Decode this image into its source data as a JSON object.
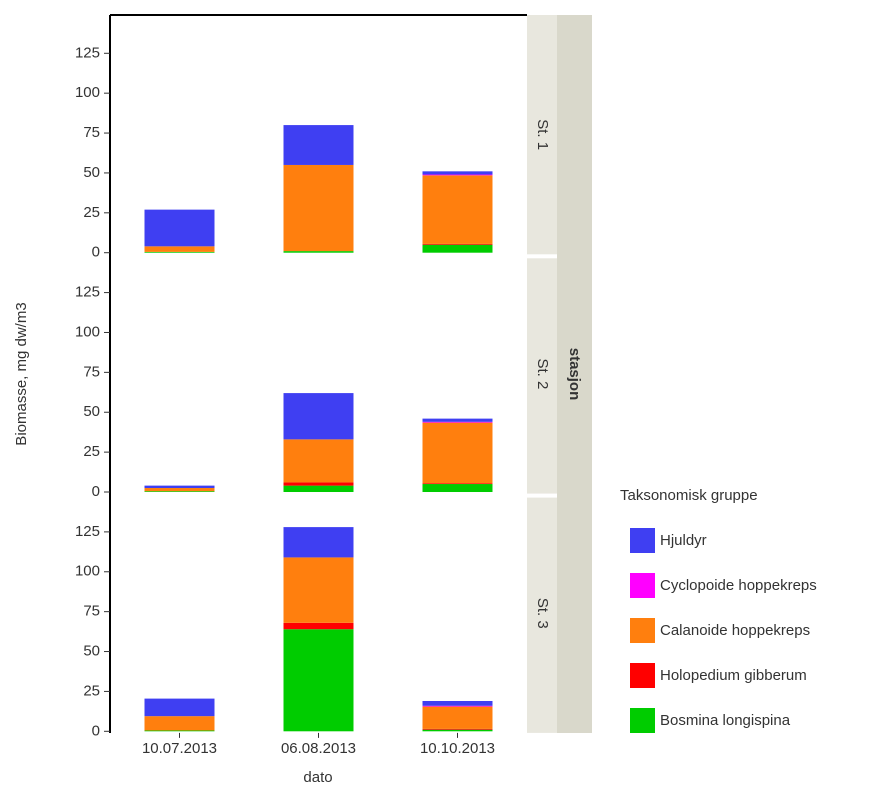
{
  "chart_data": [
    {
      "type": "bar",
      "stacked": true,
      "title": "St. 1",
      "categories": [
        "10.07.2013",
        "06.08.2013",
        "10.10.2013"
      ],
      "series": [
        {
          "values": [
            23,
            25,
            2
          ]
        },
        {
          "values": [
            0,
            0,
            0.5
          ]
        },
        {
          "values": [
            3.5,
            54,
            43
          ]
        },
        {
          "values": [
            0,
            0,
            0.5
          ]
        },
        {
          "values": [
            0.5,
            1,
            5
          ]
        }
      ],
      "ylim": [
        -1,
        149
      ],
      "yticks": [
        0,
        25,
        50,
        75,
        100,
        125
      ]
    },
    {
      "type": "bar",
      "stacked": true,
      "title": "St. 2",
      "categories": [
        "10.07.2013",
        "06.08.2013",
        "10.10.2013"
      ],
      "series": [
        {
          "values": [
            1.5,
            29,
            2
          ]
        },
        {
          "values": [
            0,
            0,
            0.5
          ]
        },
        {
          "values": [
            2,
            27,
            38
          ]
        },
        {
          "values": [
            0,
            2,
            0.5
          ]
        },
        {
          "values": [
            0.5,
            4,
            5
          ]
        }
      ],
      "ylim": [
        -1,
        149
      ],
      "yticks": [
        0,
        25,
        50,
        75,
        100,
        125
      ]
    },
    {
      "type": "bar",
      "stacked": true,
      "title": "St. 3",
      "categories": [
        "10.07.2013",
        "06.08.2013",
        "10.10.2013"
      ],
      "series": [
        {
          "values": [
            11,
            19,
            3
          ]
        },
        {
          "values": [
            0,
            0,
            0.5
          ]
        },
        {
          "values": [
            9,
            41,
            14
          ]
        },
        {
          "values": [
            0,
            4,
            0.5
          ]
        },
        {
          "values": [
            0.5,
            64,
            1
          ]
        }
      ],
      "ylim": [
        -1,
        149
      ],
      "yticks": [
        0,
        25,
        50,
        75,
        100,
        125
      ]
    }
  ],
  "facet_label": "stasjon",
  "y_label": "Biomasse, mg dw/m3",
  "x_label": "dato",
  "legend": {
    "title": "Taksonomisk gruppe",
    "items": [
      {
        "name": "Hjuldyr",
        "color": "#3f3ff2"
      },
      {
        "name": "Cyclopoide hoppekreps",
        "color": "#ff00ff"
      },
      {
        "name": "Calanoide hoppekreps",
        "color": "#ff7f0e"
      },
      {
        "name": "Holopedium gibberum",
        "color": "#ff0000"
      },
      {
        "name": "Bosmina longispina",
        "color": "#00cc00"
      }
    ]
  }
}
